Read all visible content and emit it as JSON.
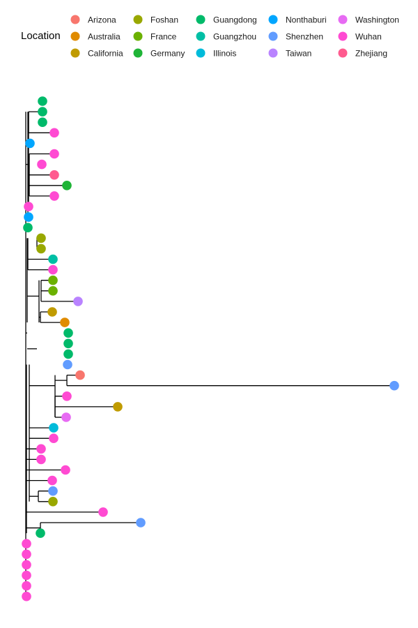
{
  "legend": {
    "title": "Location",
    "items": [
      {
        "label": "Arizona",
        "color": "#F8766D"
      },
      {
        "label": "Australia",
        "color": "#E08B00"
      },
      {
        "label": "California",
        "color": "#C09B00"
      },
      {
        "label": "Foshan",
        "color": "#99A800"
      },
      {
        "label": "France",
        "color": "#6BB100"
      },
      {
        "label": "Germany",
        "color": "#1FB437"
      },
      {
        "label": "Guangdong",
        "color": "#00BA6A"
      },
      {
        "label": "Guangzhou",
        "color": "#00BFA5"
      },
      {
        "label": "Illinois",
        "color": "#00BBDA"
      },
      {
        "label": "Nonthaburi",
        "color": "#00A6FF"
      },
      {
        "label": "Shenzhen",
        "color": "#619CFF"
      },
      {
        "label": "Taiwan",
        "color": "#B983FF"
      },
      {
        "label": "Washington",
        "color": "#E76BF3"
      },
      {
        "label": "Wuhan",
        "color": "#FF4AD2"
      },
      {
        "label": "Zhejiang",
        "color": "#FF5B8F"
      }
    ]
  },
  "tree": {
    "tip_locations": [
      "Guangdong",
      "Guangdong",
      "Guangdong",
      "Wuhan",
      "Nonthaburi",
      "Wuhan",
      "Wuhan",
      "Zhejiang",
      "Germany",
      "Wuhan",
      "Wuhan",
      "Nonthaburi",
      "Guangdong",
      "Foshan",
      "Foshan",
      "Guangzhou",
      "Wuhan",
      "France",
      "France",
      "Taiwan",
      "California",
      "Australia",
      "Guangdong",
      "Guangdong",
      "Guangdong",
      "Shenzhen",
      "Arizona",
      "Shenzhen",
      "Wuhan",
      "California",
      "Washington",
      "Illinois",
      "Wuhan",
      "Wuhan",
      "Wuhan",
      "Wuhan",
      "Wuhan",
      "Shenzhen",
      "Foshan",
      "Wuhan",
      "Shenzhen",
      "Guangdong",
      "Wuhan",
      "Wuhan",
      "Wuhan",
      "Wuhan",
      "Wuhan",
      "Wuhan"
    ]
  }
}
